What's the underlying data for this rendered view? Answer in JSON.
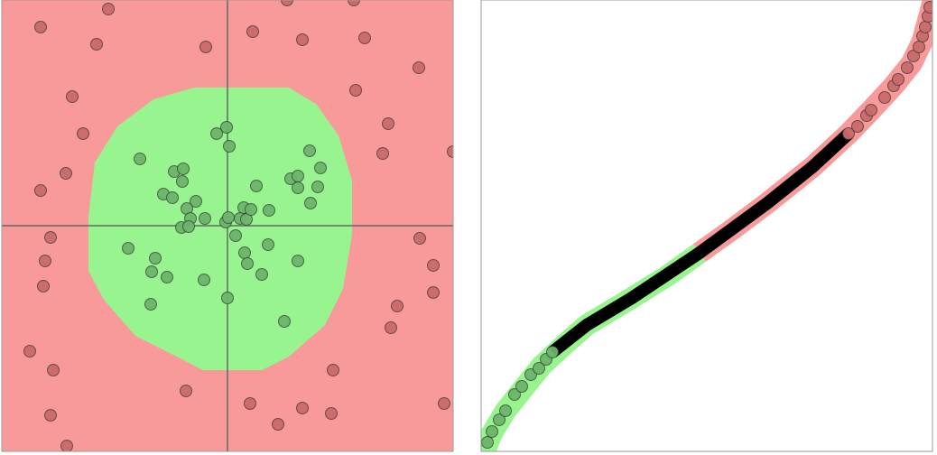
{
  "chart_data": [
    {
      "type": "scatter",
      "xlim": [
        -5,
        5
      ],
      "ylim": [
        -5,
        5
      ],
      "xticks": [
        0
      ],
      "yticks": [
        0
      ],
      "grid": true,
      "background": "#f99a9a",
      "region_color": "#98f48f",
      "series": [
        {
          "color": "#c86a6a",
          "x": [
            -4.14,
            -2.64,
            -2.9,
            -0.48,
            0.56,
            1.66,
            3.04,
            4.24,
            2.84,
            -3.44,
            -3.2,
            3.56,
            -3.58,
            -4.14,
            3.44,
            5,
            -3.92,
            -4.04,
            -4.08,
            4.26,
            4.56,
            4.56,
            3.76,
            3.62,
            -4.38,
            -3.86,
            -0.92,
            2.34,
            0.5,
            1.66,
            1.12,
            2.3,
            4.8,
            -3.92,
            -3.56,
            1.32,
            2.8
          ],
          "y": [
            4.4,
            4.8,
            4.02,
            3.96,
            4.3,
            4.12,
            4.16,
            3.5,
            3,
            2.86,
            2.04,
            2.26,
            1.16,
            0.78,
            1.6,
            1.64,
            -0.26,
            -0.78,
            -1.34,
            -0.28,
            -0.88,
            -1.48,
            -1.78,
            -2.26,
            -2.78,
            -3.2,
            -3.66,
            -3.2,
            -3.94,
            -4.04,
            -4.4,
            -4.16,
            -3.94,
            -4.2,
            -4.88,
            5,
            5
          ]
        },
        {
          "color": "#6cb46a",
          "x": [
            -0.02,
            -0.24,
            0.04,
            -1.94,
            -1.18,
            -0.98,
            -1,
            -1.42,
            -1.22,
            -0.7,
            -0.9,
            -0.82,
            -1.02,
            -0.86,
            -0.5,
            -0.04,
            0.02,
            0.28,
            0.42,
            0.36,
            0.64,
            0.92,
            1.4,
            1.56,
            1.56,
            2,
            1.84,
            1.82,
            2.06,
            -2.2,
            -1.6,
            -1.68,
            -1.34,
            -0.52,
            0.18,
            0.38,
            0.9,
            0.44,
            0.76,
            1.56,
            0,
            -1.7,
            1.26,
            0.52
          ],
          "y": [
            2.18,
            2.04,
            1.76,
            1.48,
            1.2,
            1.26,
            0.98,
            0.7,
            0.62,
            0.54,
            0.38,
            0.16,
            -0.04,
            -0.02,
            0.16,
            0.08,
            0.18,
            0.16,
            0.14,
            0.4,
            0.88,
            0.34,
            1.04,
            1.1,
            0.84,
            0.86,
            0.5,
            1.66,
            1.28,
            -0.5,
            -0.72,
            -1.02,
            -1.14,
            -1.2,
            -0.22,
            -0.6,
            -0.42,
            -0.84,
            -1.08,
            -0.78,
            -1.6,
            -1.74,
            -2.12,
            0.36
          ]
        }
      ]
    },
    {
      "type": "line",
      "xlim": [
        0,
        500
      ],
      "ylim": [
        0,
        500
      ],
      "series": [
        {
          "style": "line",
          "color": "#000000",
          "x": [
            79,
            117,
            167,
            242,
            317,
            367,
            407
          ],
          "y": [
            110,
            140,
            170,
            220,
            275,
            315,
            352
          ]
        },
        {
          "style": "markers",
          "color": "#6cb46a",
          "x": [
            7,
            12,
            20,
            27,
            37,
            45,
            55,
            64,
            72,
            79
          ],
          "y": [
            10,
            22,
            35,
            45,
            63,
            72,
            85,
            92,
            102,
            110
          ]
        },
        {
          "style": "markers",
          "color": "#c86a6a",
          "x": [
            407,
            417,
            427,
            432,
            447,
            457,
            462,
            472,
            479,
            485,
            489,
            492,
            495,
            497
          ],
          "y": [
            352,
            360,
            372,
            378,
            392,
            405,
            412,
            425,
            438,
            448,
            460,
            470,
            482,
            492
          ]
        }
      ]
    }
  ]
}
